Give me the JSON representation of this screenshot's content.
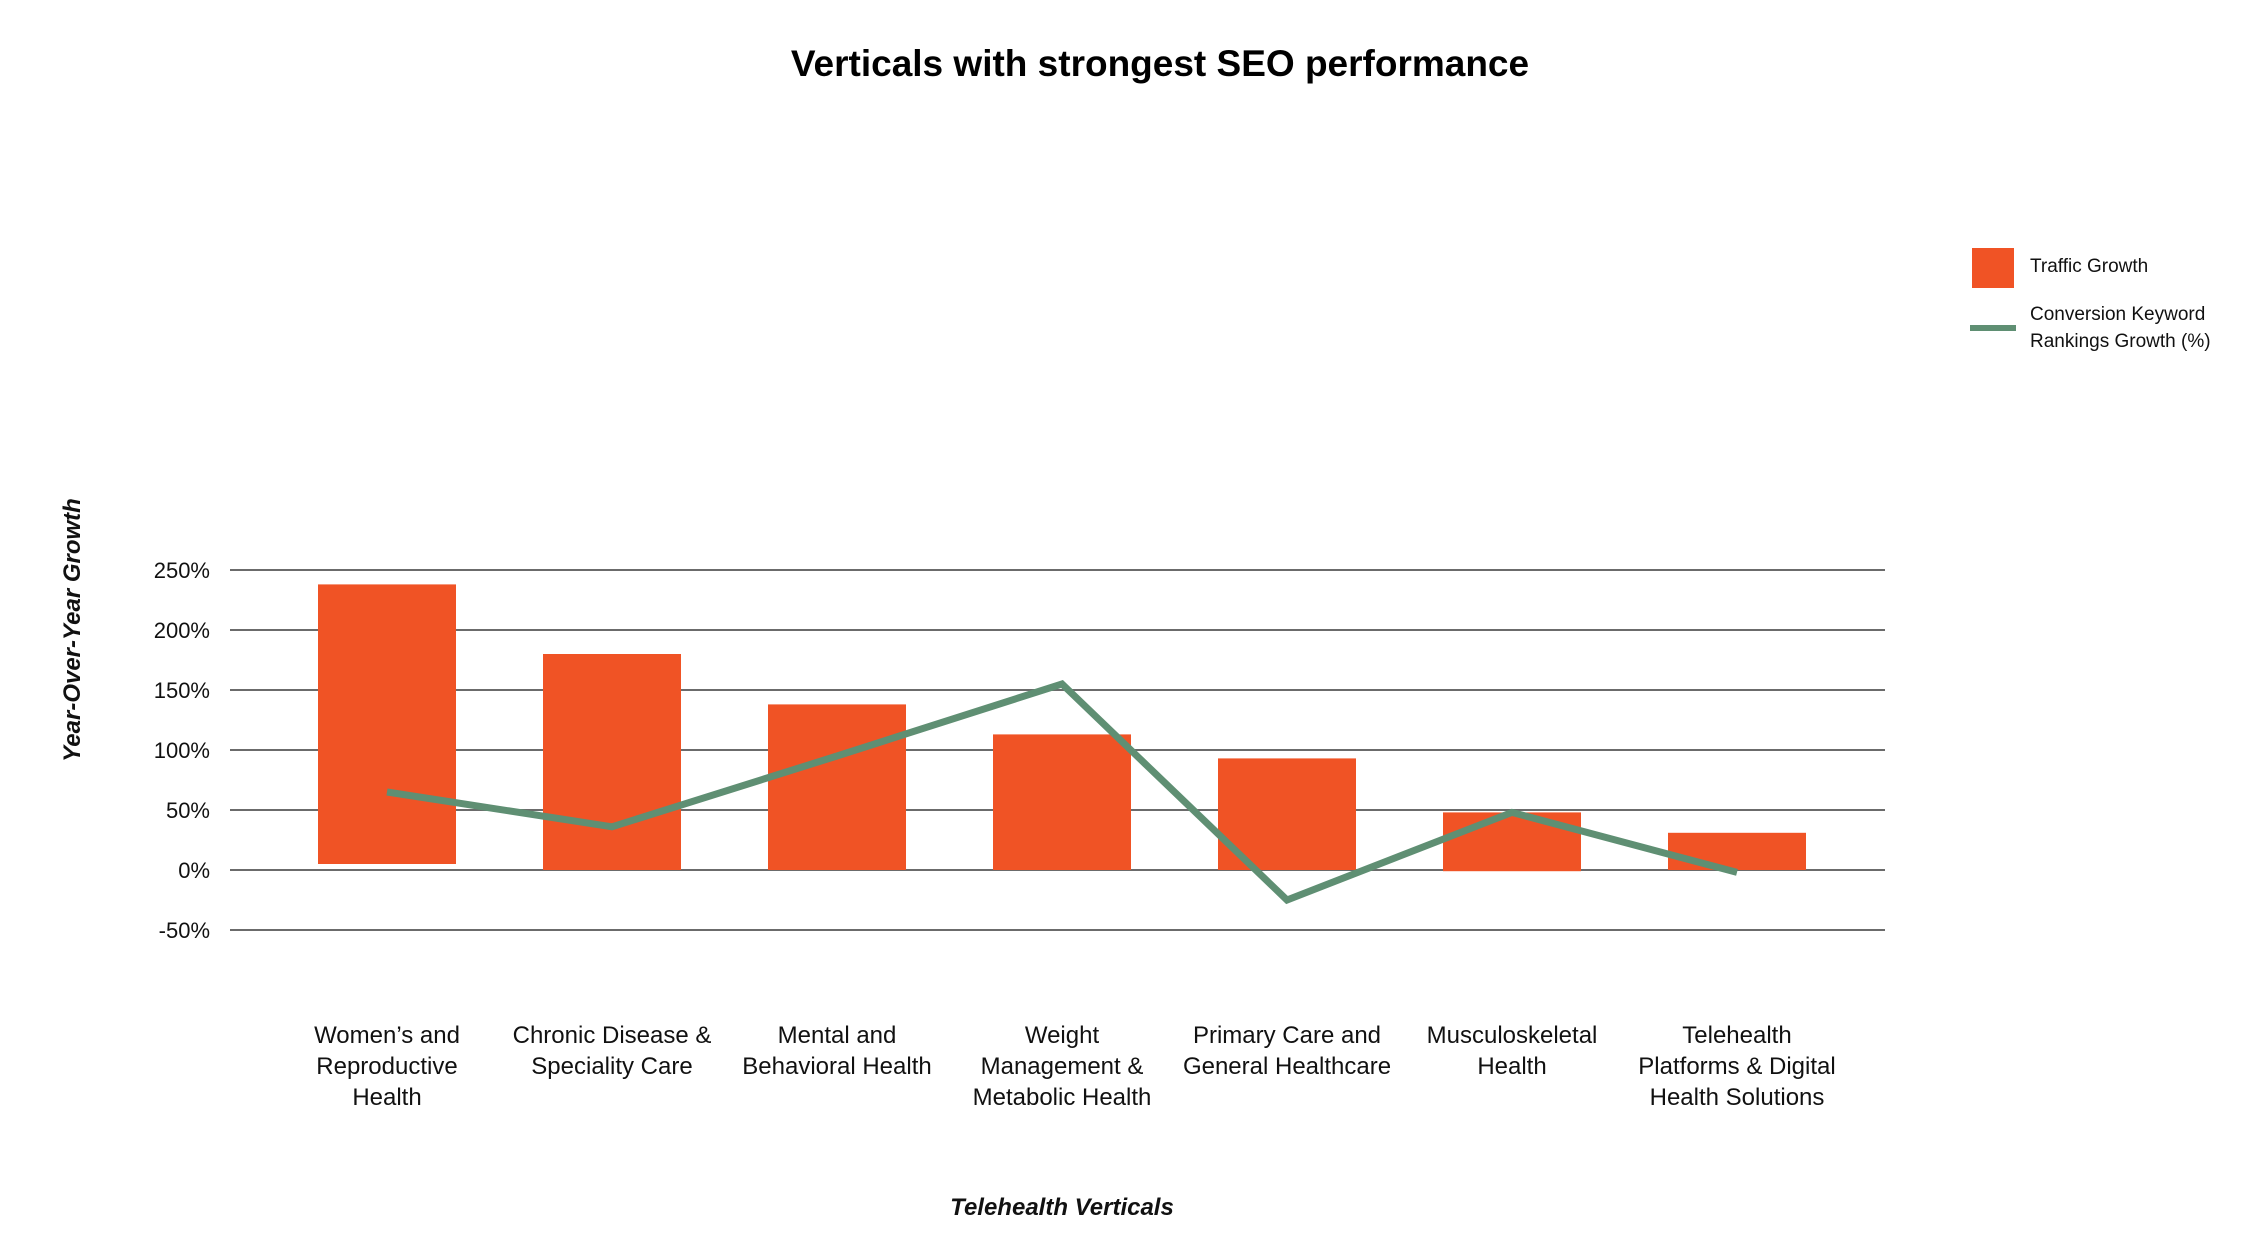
{
  "chart_data": {
    "type": "bar",
    "title": "Verticals with strongest SEO performance",
    "xlabel": "Telehealth Verticals",
    "ylabel": "Year-Over-Year Growth",
    "ylim": [
      -50,
      250
    ],
    "yticks": [
      250,
      200,
      150,
      100,
      50,
      0,
      -50
    ],
    "ytick_labels": [
      "250%",
      "200%",
      "150%",
      "100%",
      "50%",
      "0%",
      "-50%"
    ],
    "grid": true,
    "legend_position": "top-right",
    "categories": [
      [
        "Women’s and",
        "Reproductive",
        "Health"
      ],
      [
        "Chronic Disease &",
        "Speciality Care"
      ],
      [
        "Mental and",
        "Behavioral Health"
      ],
      [
        "Weight",
        "Management &",
        "Metabolic Health"
      ],
      [
        "Primary Care and",
        "General Healthcare"
      ],
      [
        "Musculoskeletal",
        "Health"
      ],
      [
        "Telehealth",
        "Platforms & Digital",
        "Health Solutions"
      ]
    ],
    "series": [
      {
        "name": "Traffic Growth",
        "kind": "bar",
        "color": "#f05325",
        "ranges": [
          [
            5,
            238
          ],
          [
            0,
            180
          ],
          [
            0,
            138
          ],
          [
            0,
            113
          ],
          [
            0,
            93
          ],
          [
            -1,
            48
          ],
          [
            0,
            31
          ]
        ]
      },
      {
        "name": "Conversion Keyword Rankings Growth (%)",
        "kind": "line",
        "color": "#5f8f73",
        "values": [
          65,
          36,
          95,
          155,
          -25,
          48,
          -2
        ]
      }
    ],
    "legend": [
      {
        "label": "Traffic Growth",
        "symbol": "square",
        "color": "#f05325"
      },
      {
        "label_lines": [
          "Conversion Keyword",
          "Rankings Growth (%)"
        ],
        "symbol": "line",
        "color": "#5f8f73"
      }
    ]
  }
}
